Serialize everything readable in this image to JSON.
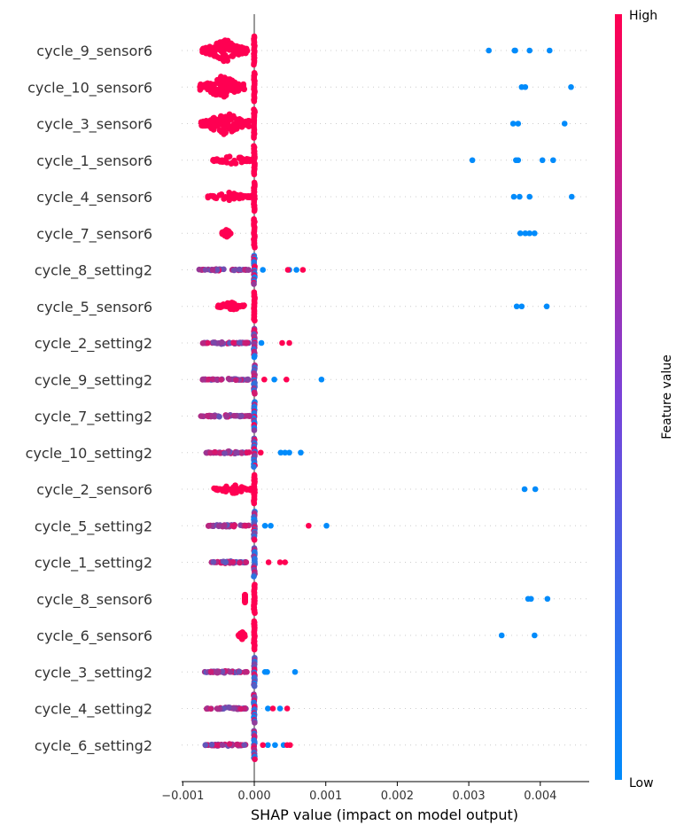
{
  "chart_data": {
    "type": "scatter",
    "subtype": "shap-beeswarm",
    "xlabel": "SHAP value (impact on model output)",
    "xlim": [
      -0.00102,
      0.00467
    ],
    "xticks": [
      -0.001,
      0.0,
      0.001,
      0.002,
      0.003,
      0.004
    ],
    "xtick_labels": [
      "−0.001",
      "0.000",
      "0.001",
      "0.002",
      "0.003",
      "0.004"
    ],
    "colorbar": {
      "label": "Feature value",
      "high": "High",
      "low": "Low",
      "high_color": "#ff0052",
      "low_color": "#008bfb"
    },
    "grid": "dotted horizontal per feature",
    "features": [
      {
        "name": "cycle_9_sensor6",
        "low_points": [
          0.00328,
          0.00364,
          0.00365,
          0.00385,
          0.00413
        ],
        "high_spread": [
          -0.00073,
          -8e-05
        ],
        "mid_points": [],
        "high_points": []
      },
      {
        "name": "cycle_10_sensor6",
        "low_points": [
          0.00374,
          0.00379,
          0.00443
        ],
        "high_spread": [
          -0.00076,
          -0.00012
        ],
        "mid_points": [],
        "high_points": []
      },
      {
        "name": "cycle_3_sensor6",
        "low_points": [
          0.00362,
          0.00369,
          0.00434
        ],
        "high_spread": [
          -0.00076,
          -6e-05
        ],
        "mid_points": [],
        "high_points": []
      },
      {
        "name": "cycle_1_sensor6",
        "low_points": [
          0.00305,
          0.00366,
          0.00369,
          0.00403,
          0.00418
        ],
        "high_spread": [
          -0.00058,
          -2e-05
        ],
        "mid_points": [],
        "high_points": []
      },
      {
        "name": "cycle_4_sensor6",
        "low_points": [
          0.00363,
          0.00371,
          0.00385,
          0.00444
        ],
        "high_spread": [
          -0.00066,
          -2e-05
        ],
        "mid_points": [],
        "high_points": []
      },
      {
        "name": "cycle_7_sensor6",
        "low_points": [
          0.00372,
          0.00379,
          0.00385,
          0.00392
        ],
        "high_spread": [
          -0.00045,
          -0.00033
        ],
        "mid_points": [],
        "high_points": []
      },
      {
        "name": "cycle_8_setting2",
        "low_points": [
          0.00012,
          0.00049,
          0.00059
        ],
        "high_spread": [
          -0.00078,
          -7e-05
        ],
        "mid_points": [],
        "high_points": [
          0.00047,
          0.00068
        ]
      },
      {
        "name": "cycle_5_sensor6",
        "low_points": [
          0.00367,
          0.00374,
          0.00409
        ],
        "high_spread": [
          -0.00052,
          -0.00014
        ],
        "mid_points": [],
        "high_points": []
      },
      {
        "name": "cycle_2_setting2",
        "low_points": [
          0.0001
        ],
        "high_spread": [
          -0.00072,
          -6e-05
        ],
        "mid_points": [],
        "high_points": [
          0.00039,
          0.00049
        ]
      },
      {
        "name": "cycle_9_setting2",
        "low_points": [
          0.00028,
          0.00094
        ],
        "high_spread": [
          -0.00073,
          -6e-05
        ],
        "mid_points": [],
        "high_points": [
          0.00014,
          0.00045
        ]
      },
      {
        "name": "cycle_7_setting2",
        "low_points": [],
        "high_spread": [
          -0.00075,
          -6e-05
        ],
        "mid_points": [],
        "high_points": []
      },
      {
        "name": "cycle_10_setting2",
        "low_points": [
          0.00037,
          0.00043,
          0.00049,
          0.00065
        ],
        "high_spread": [
          -0.00068,
          -5e-05
        ],
        "mid_points": [],
        "high_points": [
          9e-05
        ]
      },
      {
        "name": "cycle_2_sensor6",
        "low_points": [
          0.00378,
          0.00393
        ],
        "high_spread": [
          -0.00058,
          -2e-05
        ],
        "mid_points": [],
        "high_points": []
      },
      {
        "name": "cycle_5_setting2",
        "low_points": [
          0.00015,
          0.00023,
          0.00101
        ],
        "high_spread": [
          -0.00069,
          -6e-05
        ],
        "mid_points": [],
        "high_points": [
          0.00076
        ]
      },
      {
        "name": "cycle_1_setting2",
        "low_points": [],
        "high_spread": [
          -0.0006,
          -6e-05
        ],
        "mid_points": [],
        "high_points": [
          0.0002,
          0.00036,
          0.00043
        ]
      },
      {
        "name": "cycle_8_sensor6",
        "low_points": [
          0.00383,
          0.00387,
          0.0041
        ],
        "high_spread": [
          -0.00013,
          -0.00013
        ],
        "mid_points": [],
        "high_points": []
      },
      {
        "name": "cycle_6_sensor6",
        "low_points": [
          0.00346,
          0.00392
        ],
        "high_spread": [
          -0.00022,
          -0.00013
        ],
        "mid_points": [],
        "high_points": []
      },
      {
        "name": "cycle_3_setting2",
        "low_points": [
          0.00015,
          0.00018,
          0.00057
        ],
        "high_spread": [
          -0.0007,
          -7e-05
        ],
        "mid_points": [],
        "high_points": []
      },
      {
        "name": "cycle_4_setting2",
        "low_points": [
          0.00019,
          0.00036
        ],
        "high_spread": [
          -0.00067,
          -9e-05
        ],
        "mid_points": [],
        "high_points": [
          0.00026,
          0.00046
        ]
      },
      {
        "name": "cycle_6_setting2",
        "low_points": [
          0.00019,
          0.00029,
          0.00041
        ],
        "high_spread": [
          -0.0007,
          -9e-05
        ],
        "mid_points": [],
        "high_points": [
          0.00012,
          0.00046,
          0.0005
        ]
      }
    ]
  }
}
